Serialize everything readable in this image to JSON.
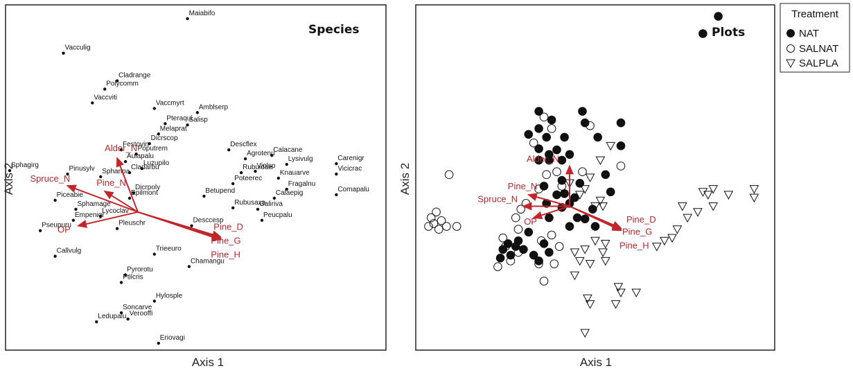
{
  "colors": {
    "arrow": "#c0272d",
    "point": "#111111",
    "frame": "#222222"
  },
  "chart_data": [
    {
      "type": "scatter",
      "title": "Species",
      "xlabel": "Axis 1",
      "ylabel": "Axis 2",
      "xlim": [
        -1.6,
        3.0
      ],
      "ylim": [
        -2.0,
        3.0
      ],
      "grid": false,
      "points": [
        {
          "label": "Maiabifo",
          "x": 0.6,
          "y": 2.8
        },
        {
          "label": "Vacculig",
          "x": -0.9,
          "y": 2.3
        },
        {
          "label": "Cladrange",
          "x": -0.25,
          "y": 1.9
        },
        {
          "label": "Polycomm",
          "x": -0.4,
          "y": 1.78
        },
        {
          "label": "Vaccviti",
          "x": -0.55,
          "y": 1.58
        },
        {
          "label": "Vaccmyrt",
          "x": 0.2,
          "y": 1.5
        },
        {
          "label": "Amblserp",
          "x": 0.72,
          "y": 1.44
        },
        {
          "label": "Pteraqui",
          "x": 0.33,
          "y": 1.28
        },
        {
          "label": "Salisp",
          "x": 0.6,
          "y": 1.26
        },
        {
          "label": "Melaprat",
          "x": 0.25,
          "y": 1.13
        },
        {
          "label": "Dicrscop",
          "x": 0.14,
          "y": 0.99
        },
        {
          "label": "Festovin",
          "x": -0.2,
          "y": 0.9
        },
        {
          "label": "Poputrem",
          "x": -0.02,
          "y": 0.84
        },
        {
          "label": "Aulapalu",
          "x": -0.15,
          "y": 0.73
        },
        {
          "label": "Luzupilo",
          "x": 0.05,
          "y": 0.63
        },
        {
          "label": "Cladarbu",
          "x": -0.1,
          "y": 0.57
        },
        {
          "label": "Spharipa",
          "x": -0.45,
          "y": 0.51
        },
        {
          "label": "Pinusylv",
          "x": -0.85,
          "y": 0.55
        },
        {
          "label": "Sphagirg",
          "x": -1.55,
          "y": 0.6
        },
        {
          "label": "Dicrpoly",
          "x": -0.05,
          "y": 0.28
        },
        {
          "label": "Epilmont",
          "x": -0.1,
          "y": 0.2
        },
        {
          "label": "Piceabie",
          "x": -1.0,
          "y": 0.17
        },
        {
          "label": "Sphamage",
          "x": -0.75,
          "y": 0.04
        },
        {
          "label": "Lycoclav",
          "x": -0.45,
          "y": -0.06
        },
        {
          "label": "Empenigr",
          "x": -0.78,
          "y": -0.12
        },
        {
          "label": "Pseupuru",
          "x": -1.18,
          "y": -0.27
        },
        {
          "label": "Pleuschr",
          "x": -0.25,
          "y": -0.24
        },
        {
          "label": "Descflex",
          "x": 1.1,
          "y": 0.9
        },
        {
          "label": "Calacane",
          "x": 1.62,
          "y": 0.82
        },
        {
          "label": "Agrotenu",
          "x": 1.3,
          "y": 0.77
        },
        {
          "label": "Lysivulg",
          "x": 1.8,
          "y": 0.69
        },
        {
          "label": "Carenigr",
          "x": 2.4,
          "y": 0.7
        },
        {
          "label": "Violsp",
          "x": 1.42,
          "y": 0.59
        },
        {
          "label": "Rubuidae",
          "x": 1.25,
          "y": 0.57
        },
        {
          "label": "Knauarve",
          "x": 1.7,
          "y": 0.49
        },
        {
          "label": "Vicicrac",
          "x": 2.4,
          "y": 0.55
        },
        {
          "label": "Poteerec",
          "x": 1.15,
          "y": 0.41
        },
        {
          "label": "Fragalnu",
          "x": 1.8,
          "y": 0.33
        },
        {
          "label": "Comapalu",
          "x": 2.4,
          "y": 0.25
        },
        {
          "label": "Betupend",
          "x": 0.8,
          "y": 0.23
        },
        {
          "label": "Calaepig",
          "x": 1.65,
          "y": 0.2
        },
        {
          "label": "Rubusaxa",
          "x": 1.15,
          "y": 0.06
        },
        {
          "label": "Galiriva",
          "x": 1.45,
          "y": 0.04
        },
        {
          "label": "Peucpalu",
          "x": 1.5,
          "y": -0.12
        },
        {
          "label": "Desccesp",
          "x": 0.65,
          "y": -0.2
        },
        {
          "label": "Trieeuro",
          "x": 0.2,
          "y": -0.61
        },
        {
          "label": "Callvulg",
          "x": -1.0,
          "y": -0.64
        },
        {
          "label": "Chamangu",
          "x": 0.62,
          "y": -0.79
        },
        {
          "label": "Pyrorotu",
          "x": -0.15,
          "y": -0.91
        },
        {
          "label": "Ptilcris",
          "x": -0.2,
          "y": -1.02
        },
        {
          "label": "Hylosple",
          "x": 0.2,
          "y": -1.29
        },
        {
          "label": "Soncarve",
          "x": -0.2,
          "y": -1.46
        },
        {
          "label": "Verooffi",
          "x": -0.12,
          "y": -1.55
        },
        {
          "label": "Ledupalu",
          "x": -0.5,
          "y": -1.59
        },
        {
          "label": "Eriovagi",
          "x": 0.25,
          "y": -1.9
        }
      ],
      "vectors": [
        {
          "label": "Alder_N",
          "x": -0.25,
          "y": 0.78
        },
        {
          "label": "Pine_N",
          "x": -0.4,
          "y": 0.3
        },
        {
          "label": "Spruce_N",
          "x": -0.85,
          "y": 0.38
        },
        {
          "label": "OP",
          "x": -0.72,
          "y": -0.2
        },
        {
          "label": "Pine_D",
          "x": 1.0,
          "y": -0.36
        },
        {
          "label": "Pine_G",
          "x": 1.0,
          "y": -0.38
        },
        {
          "label": "Pine_H",
          "x": 1.0,
          "y": -0.4
        }
      ],
      "origin": [
        0,
        0
      ]
    },
    {
      "type": "scatter",
      "title": "Plots",
      "xlabel": "Axis 1",
      "ylabel": "Axis 2",
      "xlim": [
        -3.0,
        4.0
      ],
      "ylim": [
        -2.5,
        3.5
      ],
      "grid": false,
      "legend": {
        "title": "Treatment",
        "position": "outside-top-right",
        "entries": [
          {
            "name": "NAT",
            "marker": "filled-circle"
          },
          {
            "name": "SALNAT",
            "marker": "open-circle"
          },
          {
            "name": "SALPLA",
            "marker": "open-triangle"
          }
        ]
      },
      "series": [
        {
          "name": "NAT",
          "marker": "filled-circle",
          "points": [
            [
              2.9,
              3.3
            ],
            [
              2.6,
              3.0
            ],
            [
              -0.6,
              1.65
            ],
            [
              0.25,
              1.65
            ],
            [
              -0.35,
              1.5
            ],
            [
              0.3,
              1.45
            ],
            [
              1.0,
              1.45
            ],
            [
              -0.6,
              1.35
            ],
            [
              -0.8,
              1.25
            ],
            [
              -0.45,
              1.2
            ],
            [
              -0.1,
              1.2
            ],
            [
              0.55,
              1.2
            ],
            [
              1.0,
              1.05
            ],
            [
              -0.6,
              1.0
            ],
            [
              -0.25,
              0.98
            ],
            [
              0.0,
              0.9
            ],
            [
              -0.4,
              0.9
            ],
            [
              -0.4,
              0.8
            ],
            [
              -0.15,
              0.8
            ],
            [
              -0.6,
              0.8
            ],
            [
              -0.15,
              0.45
            ],
            [
              -0.5,
              0.35
            ],
            [
              0.2,
              0.4
            ],
            [
              0.7,
              0.55
            ],
            [
              -0.45,
              0.05
            ],
            [
              -0.4,
              -0.2
            ],
            [
              -0.15,
              -0.02
            ],
            [
              -0.1,
              0.22
            ],
            [
              0.1,
              0.15
            ],
            [
              0.8,
              0.25
            ],
            [
              -0.25,
              0.2
            ],
            [
              0.0,
              0.05
            ],
            [
              0.15,
              -0.2
            ],
            [
              0.3,
              -0.22
            ],
            [
              0.45,
              -0.05
            ],
            [
              0.0,
              -0.35
            ],
            [
              0.5,
              -0.35
            ],
            [
              -0.8,
              -0.45
            ],
            [
              -1.0,
              -0.6
            ],
            [
              -1.2,
              -0.65
            ],
            [
              -1.05,
              -0.7
            ],
            [
              -1.3,
              -0.75
            ],
            [
              -0.9,
              -0.75
            ],
            [
              -0.5,
              -0.65
            ],
            [
              -0.4,
              -0.8
            ],
            [
              -1.15,
              -0.85
            ],
            [
              -0.7,
              -0.85
            ],
            [
              -1.35,
              -0.9
            ],
            [
              -0.6,
              -0.95
            ]
          ]
        },
        {
          "name": "SALNAT",
          "marker": "open-circle",
          "points": [
            [
              -0.35,
              1.35
            ],
            [
              -0.5,
              1.55
            ],
            [
              0.4,
              1.4
            ],
            [
              -0.7,
              1.1
            ],
            [
              -0.45,
              0.55
            ],
            [
              -0.25,
              0.6
            ],
            [
              0.25,
              0.6
            ],
            [
              1.0,
              0.7
            ],
            [
              -0.15,
              0.35
            ],
            [
              -0.6,
              0.3
            ],
            [
              -0.85,
              0.05
            ],
            [
              -0.95,
              -0.05
            ],
            [
              -1.05,
              -0.2
            ],
            [
              -1.0,
              -0.4
            ],
            [
              -1.3,
              -0.55
            ],
            [
              -1.25,
              -0.7
            ],
            [
              -0.35,
              -0.5
            ],
            [
              -0.55,
              -0.6
            ],
            [
              -0.2,
              -0.7
            ],
            [
              -1.0,
              -0.8
            ],
            [
              -1.15,
              -0.95
            ],
            [
              -0.6,
              -1.0
            ],
            [
              -0.3,
              -1.0
            ],
            [
              -1.4,
              -1.05
            ],
            [
              -0.5,
              -1.3
            ],
            [
              -2.35,
              0.55
            ],
            [
              -2.6,
              -0.1
            ],
            [
              -2.7,
              -0.2
            ],
            [
              -2.5,
              -0.25
            ],
            [
              -2.65,
              -0.3
            ],
            [
              -2.75,
              -0.35
            ],
            [
              -2.4,
              -0.35
            ],
            [
              -2.55,
              -0.4
            ],
            [
              -2.2,
              -0.35
            ]
          ]
        },
        {
          "name": "SALPLA",
          "marker": "open-triangle",
          "points": [
            [
              0.8,
              1.05
            ],
            [
              0.6,
              0.8
            ],
            [
              0.4,
              0.5
            ],
            [
              0.6,
              0.1
            ],
            [
              0.5,
              0.0
            ],
            [
              0.65,
              0.0
            ],
            [
              0.3,
              0.3
            ],
            [
              0.2,
              0.2
            ],
            [
              0.0,
              0.4
            ],
            [
              0.5,
              -0.6
            ],
            [
              0.3,
              -0.75
            ],
            [
              0.1,
              -0.8
            ],
            [
              0.2,
              -0.95
            ],
            [
              0.7,
              -0.65
            ],
            [
              0.65,
              -0.8
            ],
            [
              0.4,
              -1.0
            ],
            [
              0.1,
              -1.2
            ],
            [
              0.95,
              -1.4
            ],
            [
              1.0,
              -1.5
            ],
            [
              1.3,
              -1.5
            ],
            [
              0.35,
              -1.6
            ],
            [
              0.4,
              -1.7
            ],
            [
              0.7,
              -0.95
            ],
            [
              0.3,
              -2.2
            ],
            [
              0.9,
              -1.7
            ],
            [
              1.85,
              -0.6
            ],
            [
              2.1,
              -0.4
            ],
            [
              2.3,
              -0.2
            ],
            [
              2.5,
              -0.1
            ],
            [
              2.8,
              0.0
            ],
            [
              2.2,
              0.0
            ],
            [
              2.7,
              0.2
            ],
            [
              2.6,
              0.25
            ],
            [
              2.8,
              0.3
            ],
            [
              3.1,
              0.2
            ],
            [
              3.6,
              0.3
            ],
            [
              3.6,
              0.15
            ],
            [
              1.7,
              -0.7
            ],
            [
              2.0,
              -0.55
            ]
          ]
        }
      ],
      "vectors": [
        {
          "label": "Alder_N",
          "x": 0.0,
          "y": 0.7
        },
        {
          "label": "Pine_N",
          "x": -0.8,
          "y": 0.2
        },
        {
          "label": "Spruce_N",
          "x": -0.9,
          "y": 0.0
        },
        {
          "label": "OP",
          "x": -0.7,
          "y": -0.2
        },
        {
          "label": "Pine_D",
          "x": 1.0,
          "y": -0.38
        },
        {
          "label": "Pine_G",
          "x": 1.0,
          "y": -0.4
        },
        {
          "label": "Pine_H",
          "x": 1.0,
          "y": -0.42
        }
      ],
      "origin": [
        0,
        0
      ]
    }
  ]
}
